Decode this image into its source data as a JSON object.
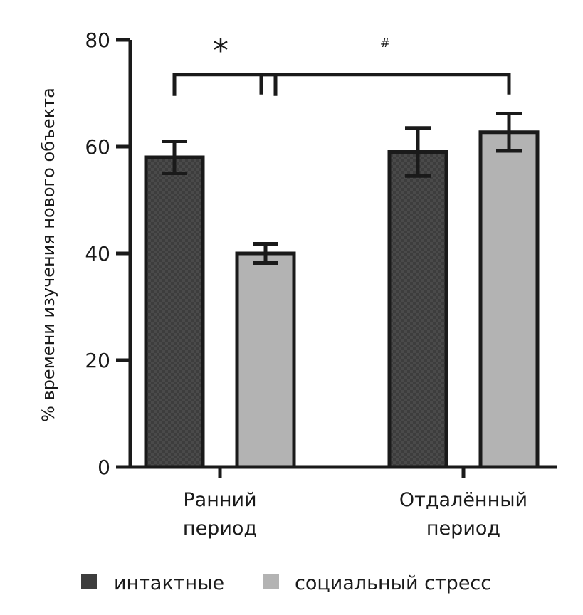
{
  "chart_data": {
    "type": "bar",
    "title": "",
    "ylabel": "% времени изучения нового объекта",
    "xlabel": "",
    "ylim": [
      0,
      80
    ],
    "yticks": [
      0,
      20,
      40,
      60,
      80
    ],
    "grid": false,
    "categories": [
      [
        "Ранний",
        "период"
      ],
      [
        "Отдалённый",
        "период"
      ]
    ],
    "series": [
      {
        "name": "интактные",
        "color": "#3d3d3d",
        "pattern": "checkered",
        "values": [
          58,
          59
        ],
        "errors": [
          3,
          4.5
        ]
      },
      {
        "name": "социальный стресс",
        "color": "#b3b3b3",
        "pattern": "solid",
        "values": [
          40,
          62.7
        ],
        "errors": [
          1.8,
          3.5
        ]
      }
    ],
    "legend_position": "bottom",
    "significance": [
      {
        "symbol": "*",
        "from": {
          "category": 0,
          "series": 0
        },
        "to": {
          "category": 0,
          "series": 1
        },
        "level": 73.5
      },
      {
        "symbol": "#",
        "from": {
          "category": 0,
          "series": 1
        },
        "to": {
          "category": 1,
          "series": 1
        },
        "level": 73.5
      }
    ]
  }
}
